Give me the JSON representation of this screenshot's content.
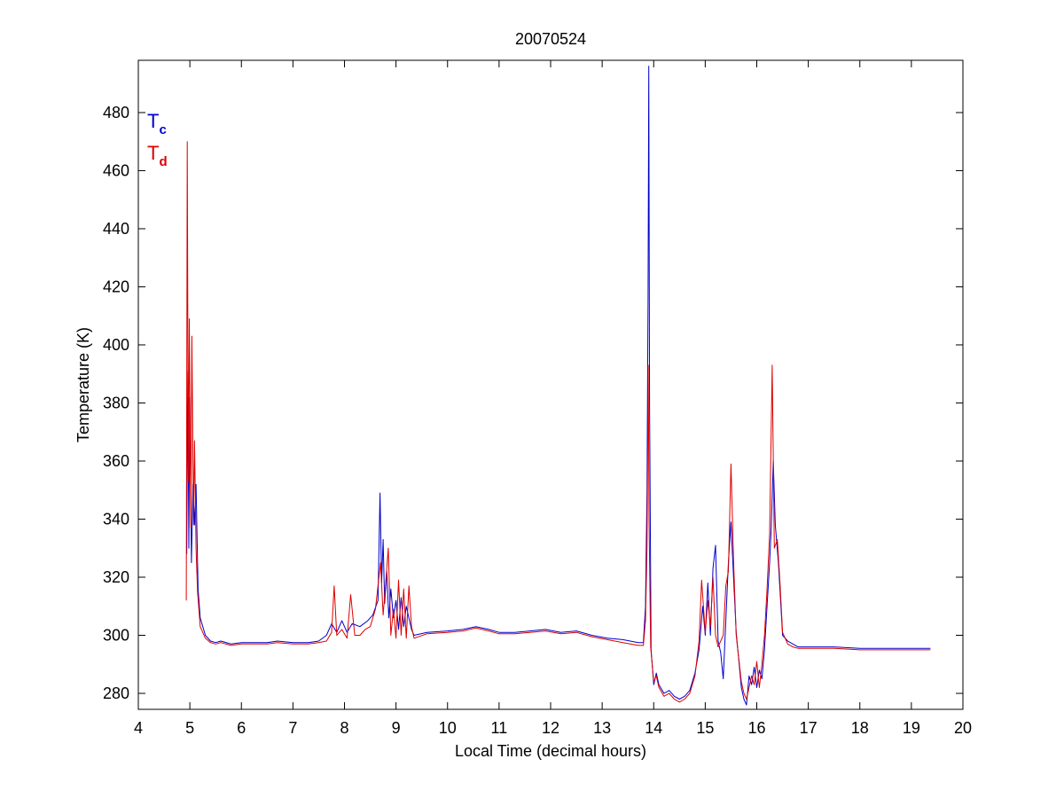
{
  "chart_data": {
    "type": "line",
    "title": "20070524",
    "xlabel": "Local Time (decimal hours)",
    "ylabel": "Temperature (K)",
    "xlim": [
      4,
      20
    ],
    "ylim": [
      274.5,
      498
    ],
    "x_ticks": [
      4,
      5,
      6,
      7,
      8,
      9,
      10,
      11,
      12,
      13,
      14,
      15,
      16,
      17,
      18,
      19,
      20
    ],
    "y_ticks": [
      280,
      300,
      320,
      340,
      360,
      380,
      400,
      420,
      440,
      460,
      480
    ],
    "grid": false,
    "legend": {
      "placement": "top-left",
      "entries": [
        {
          "main": "T",
          "sub": "c",
          "color": "#0000cc"
        },
        {
          "main": "T",
          "sub": "d",
          "color": "#dd0000"
        }
      ]
    },
    "series": [
      {
        "color": "#0000cc",
        "points": [
          [
            4.94,
            328
          ],
          [
            4.96,
            391
          ],
          [
            4.98,
            330
          ],
          [
            5.0,
            382
          ],
          [
            5.03,
            325
          ],
          [
            5.06,
            352
          ],
          [
            5.09,
            338
          ],
          [
            5.12,
            352
          ],
          [
            5.16,
            316
          ],
          [
            5.2,
            306
          ],
          [
            5.3,
            300
          ],
          [
            5.4,
            298
          ],
          [
            5.5,
            297.5
          ],
          [
            5.6,
            298
          ],
          [
            5.8,
            297
          ],
          [
            6.0,
            297.5
          ],
          [
            6.2,
            297.5
          ],
          [
            6.5,
            297.5
          ],
          [
            6.7,
            298
          ],
          [
            7.0,
            297.5
          ],
          [
            7.3,
            297.5
          ],
          [
            7.5,
            298
          ],
          [
            7.65,
            300
          ],
          [
            7.75,
            304
          ],
          [
            7.85,
            301
          ],
          [
            7.95,
            305
          ],
          [
            8.05,
            301
          ],
          [
            8.15,
            304
          ],
          [
            8.3,
            303
          ],
          [
            8.45,
            305
          ],
          [
            8.55,
            307
          ],
          [
            8.65,
            312
          ],
          [
            8.69,
            349
          ],
          [
            8.72,
            318
          ],
          [
            8.75,
            333
          ],
          [
            8.78,
            311
          ],
          [
            8.82,
            322
          ],
          [
            8.86,
            306
          ],
          [
            8.9,
            316
          ],
          [
            8.95,
            306
          ],
          [
            9.0,
            312
          ],
          [
            9.05,
            302
          ],
          [
            9.1,
            313
          ],
          [
            9.15,
            303
          ],
          [
            9.2,
            310
          ],
          [
            9.3,
            302
          ],
          [
            9.35,
            300
          ],
          [
            9.6,
            301
          ],
          [
            10.0,
            301.5
          ],
          [
            10.3,
            302
          ],
          [
            10.55,
            303
          ],
          [
            10.8,
            302
          ],
          [
            11.0,
            301
          ],
          [
            11.3,
            301
          ],
          [
            11.6,
            301.5
          ],
          [
            11.9,
            302
          ],
          [
            12.2,
            301
          ],
          [
            12.5,
            301.5
          ],
          [
            12.8,
            300
          ],
          [
            13.1,
            299
          ],
          [
            13.4,
            298.5
          ],
          [
            13.7,
            297.5
          ],
          [
            13.8,
            297.5
          ],
          [
            13.84,
            310
          ],
          [
            13.87,
            350
          ],
          [
            13.89,
            416
          ],
          [
            13.905,
            496
          ],
          [
            13.92,
            380
          ],
          [
            13.95,
            295
          ],
          [
            14.0,
            283
          ],
          [
            14.05,
            287
          ],
          [
            14.1,
            283
          ],
          [
            14.2,
            280
          ],
          [
            14.3,
            281
          ],
          [
            14.4,
            279
          ],
          [
            14.5,
            278
          ],
          [
            14.6,
            279
          ],
          [
            14.7,
            281
          ],
          [
            14.8,
            287
          ],
          [
            14.88,
            295
          ],
          [
            14.95,
            310
          ],
          [
            15.0,
            300
          ],
          [
            15.05,
            318
          ],
          [
            15.1,
            300
          ],
          [
            15.15,
            323
          ],
          [
            15.2,
            331
          ],
          [
            15.25,
            298
          ],
          [
            15.3,
            294
          ],
          [
            15.35,
            285
          ],
          [
            15.4,
            305
          ],
          [
            15.45,
            325
          ],
          [
            15.5,
            339
          ],
          [
            15.55,
            320
          ],
          [
            15.6,
            301
          ],
          [
            15.7,
            282
          ],
          [
            15.75,
            278
          ],
          [
            15.8,
            276
          ],
          [
            15.85,
            286
          ],
          [
            15.9,
            283
          ],
          [
            15.95,
            289
          ],
          [
            16.0,
            282
          ],
          [
            16.05,
            288
          ],
          [
            16.1,
            285
          ],
          [
            16.15,
            295
          ],
          [
            16.2,
            310
          ],
          [
            16.25,
            325
          ],
          [
            16.28,
            337
          ],
          [
            16.32,
            360
          ],
          [
            16.36,
            338
          ],
          [
            16.42,
            325
          ],
          [
            16.5,
            300
          ],
          [
            16.6,
            298
          ],
          [
            16.7,
            297
          ],
          [
            16.8,
            296
          ],
          [
            17.0,
            296
          ],
          [
            17.5,
            296
          ],
          [
            18.0,
            295.5
          ],
          [
            18.5,
            295.5
          ],
          [
            19.0,
            295.5
          ],
          [
            19.37,
            295.5
          ]
        ]
      },
      {
        "color": "#dd0000",
        "points": [
          [
            4.93,
            312
          ],
          [
            4.95,
            470
          ],
          [
            4.97,
            353
          ],
          [
            4.99,
            409
          ],
          [
            5.02,
            337
          ],
          [
            5.04,
            403
          ],
          [
            5.07,
            338
          ],
          [
            5.09,
            367
          ],
          [
            5.12,
            330
          ],
          [
            5.15,
            315
          ],
          [
            5.2,
            303
          ],
          [
            5.3,
            299
          ],
          [
            5.4,
            297.5
          ],
          [
            5.5,
            297
          ],
          [
            5.6,
            297.5
          ],
          [
            5.8,
            296.5
          ],
          [
            6.0,
            297
          ],
          [
            6.2,
            297
          ],
          [
            6.5,
            297
          ],
          [
            6.7,
            297.5
          ],
          [
            7.0,
            297
          ],
          [
            7.3,
            297
          ],
          [
            7.5,
            297.5
          ],
          [
            7.65,
            298
          ],
          [
            7.75,
            301
          ],
          [
            7.8,
            317
          ],
          [
            7.85,
            300
          ],
          [
            7.95,
            302
          ],
          [
            8.05,
            299
          ],
          [
            8.12,
            314
          ],
          [
            8.2,
            300
          ],
          [
            8.3,
            300
          ],
          [
            8.4,
            302
          ],
          [
            8.5,
            303
          ],
          [
            8.6,
            309
          ],
          [
            8.7,
            325
          ],
          [
            8.75,
            307
          ],
          [
            8.8,
            318
          ],
          [
            8.85,
            330
          ],
          [
            8.9,
            300
          ],
          [
            8.95,
            309
          ],
          [
            9.0,
            299
          ],
          [
            9.05,
            319
          ],
          [
            9.1,
            300
          ],
          [
            9.15,
            316
          ],
          [
            9.2,
            299
          ],
          [
            9.25,
            317
          ],
          [
            9.3,
            303
          ],
          [
            9.35,
            299
          ],
          [
            9.6,
            300.5
          ],
          [
            10.0,
            301
          ],
          [
            10.3,
            301.5
          ],
          [
            10.55,
            302.5
          ],
          [
            10.8,
            301.5
          ],
          [
            11.0,
            300.5
          ],
          [
            11.3,
            300.5
          ],
          [
            11.6,
            301
          ],
          [
            11.9,
            301.5
          ],
          [
            12.2,
            300.5
          ],
          [
            12.5,
            301
          ],
          [
            12.8,
            299.5
          ],
          [
            13.1,
            298.5
          ],
          [
            13.4,
            297.5
          ],
          [
            13.7,
            296.5
          ],
          [
            13.8,
            296.5
          ],
          [
            13.84,
            305
          ],
          [
            13.87,
            330
          ],
          [
            13.895,
            393
          ],
          [
            13.91,
            340
          ],
          [
            13.94,
            296
          ],
          [
            14.0,
            284
          ],
          [
            14.05,
            286
          ],
          [
            14.1,
            282
          ],
          [
            14.2,
            279
          ],
          [
            14.3,
            280
          ],
          [
            14.4,
            278
          ],
          [
            14.5,
            277
          ],
          [
            14.6,
            278
          ],
          [
            14.7,
            280
          ],
          [
            14.8,
            286
          ],
          [
            14.88,
            298
          ],
          [
            14.93,
            319
          ],
          [
            15.0,
            301
          ],
          [
            15.05,
            312
          ],
          [
            15.1,
            303
          ],
          [
            15.15,
            320
          ],
          [
            15.2,
            300
          ],
          [
            15.25,
            296
          ],
          [
            15.35,
            300
          ],
          [
            15.4,
            317
          ],
          [
            15.45,
            322
          ],
          [
            15.5,
            359
          ],
          [
            15.55,
            326
          ],
          [
            15.6,
            300
          ],
          [
            15.7,
            284
          ],
          [
            15.75,
            280
          ],
          [
            15.8,
            278
          ],
          [
            15.85,
            282
          ],
          [
            15.9,
            286
          ],
          [
            15.95,
            283
          ],
          [
            16.0,
            291
          ],
          [
            16.05,
            282
          ],
          [
            16.1,
            290
          ],
          [
            16.15,
            300
          ],
          [
            16.2,
            316
          ],
          [
            16.25,
            335
          ],
          [
            16.3,
            393
          ],
          [
            16.34,
            330
          ],
          [
            16.4,
            333
          ],
          [
            16.45,
            318
          ],
          [
            16.5,
            301
          ],
          [
            16.6,
            297
          ],
          [
            16.7,
            296
          ],
          [
            16.8,
            295.5
          ],
          [
            17.0,
            295.5
          ],
          [
            17.5,
            295.5
          ],
          [
            18.0,
            295
          ],
          [
            18.5,
            295
          ],
          [
            19.0,
            295
          ],
          [
            19.37,
            295
          ]
        ]
      }
    ]
  }
}
